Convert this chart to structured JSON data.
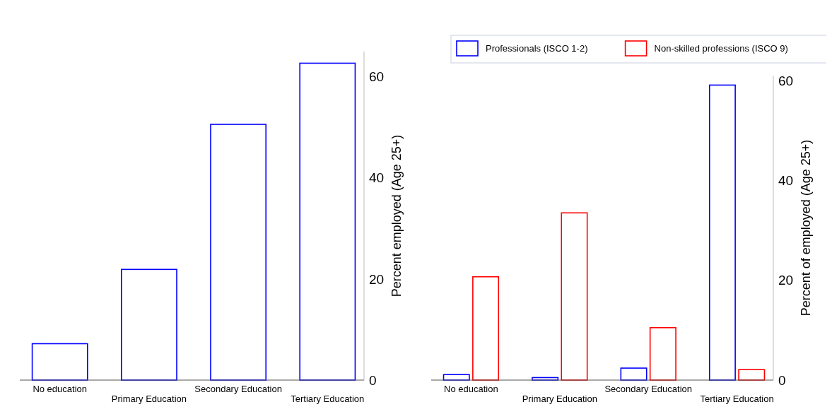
{
  "chart_data": [
    {
      "type": "bar",
      "ylabel": "Percent employed (Age 25+)",
      "categories": [
        "No education",
        "Primary Education",
        "Secondary Education",
        "Tertiary Education"
      ],
      "series": [
        {
          "color": "#0000ff",
          "values": [
            7.2,
            21.9,
            50.6,
            62.7
          ]
        }
      ],
      "ylim": [
        0,
        65
      ],
      "yticks": [
        0,
        20,
        40,
        60
      ],
      "grid": false,
      "legend": false
    },
    {
      "type": "bar",
      "ylabel": "Percent of employed (Age 25+)",
      "categories": [
        "No education",
        "Primary Education",
        "Secondary Education",
        "Tertiary Education"
      ],
      "series": [
        {
          "name": "Professionals (ISCO 1-2)",
          "color": "#0000ff",
          "values": [
            1.1,
            0.5,
            2.4,
            59.1
          ]
        },
        {
          "name": "Non-skilled professions (ISCO 9)",
          "color": "#ff0000",
          "values": [
            20.7,
            33.5,
            10.5,
            2.1
          ]
        }
      ],
      "ylim": [
        0,
        61
      ],
      "yticks": [
        0,
        20,
        40,
        60
      ],
      "grid": false,
      "legend": "top"
    }
  ]
}
